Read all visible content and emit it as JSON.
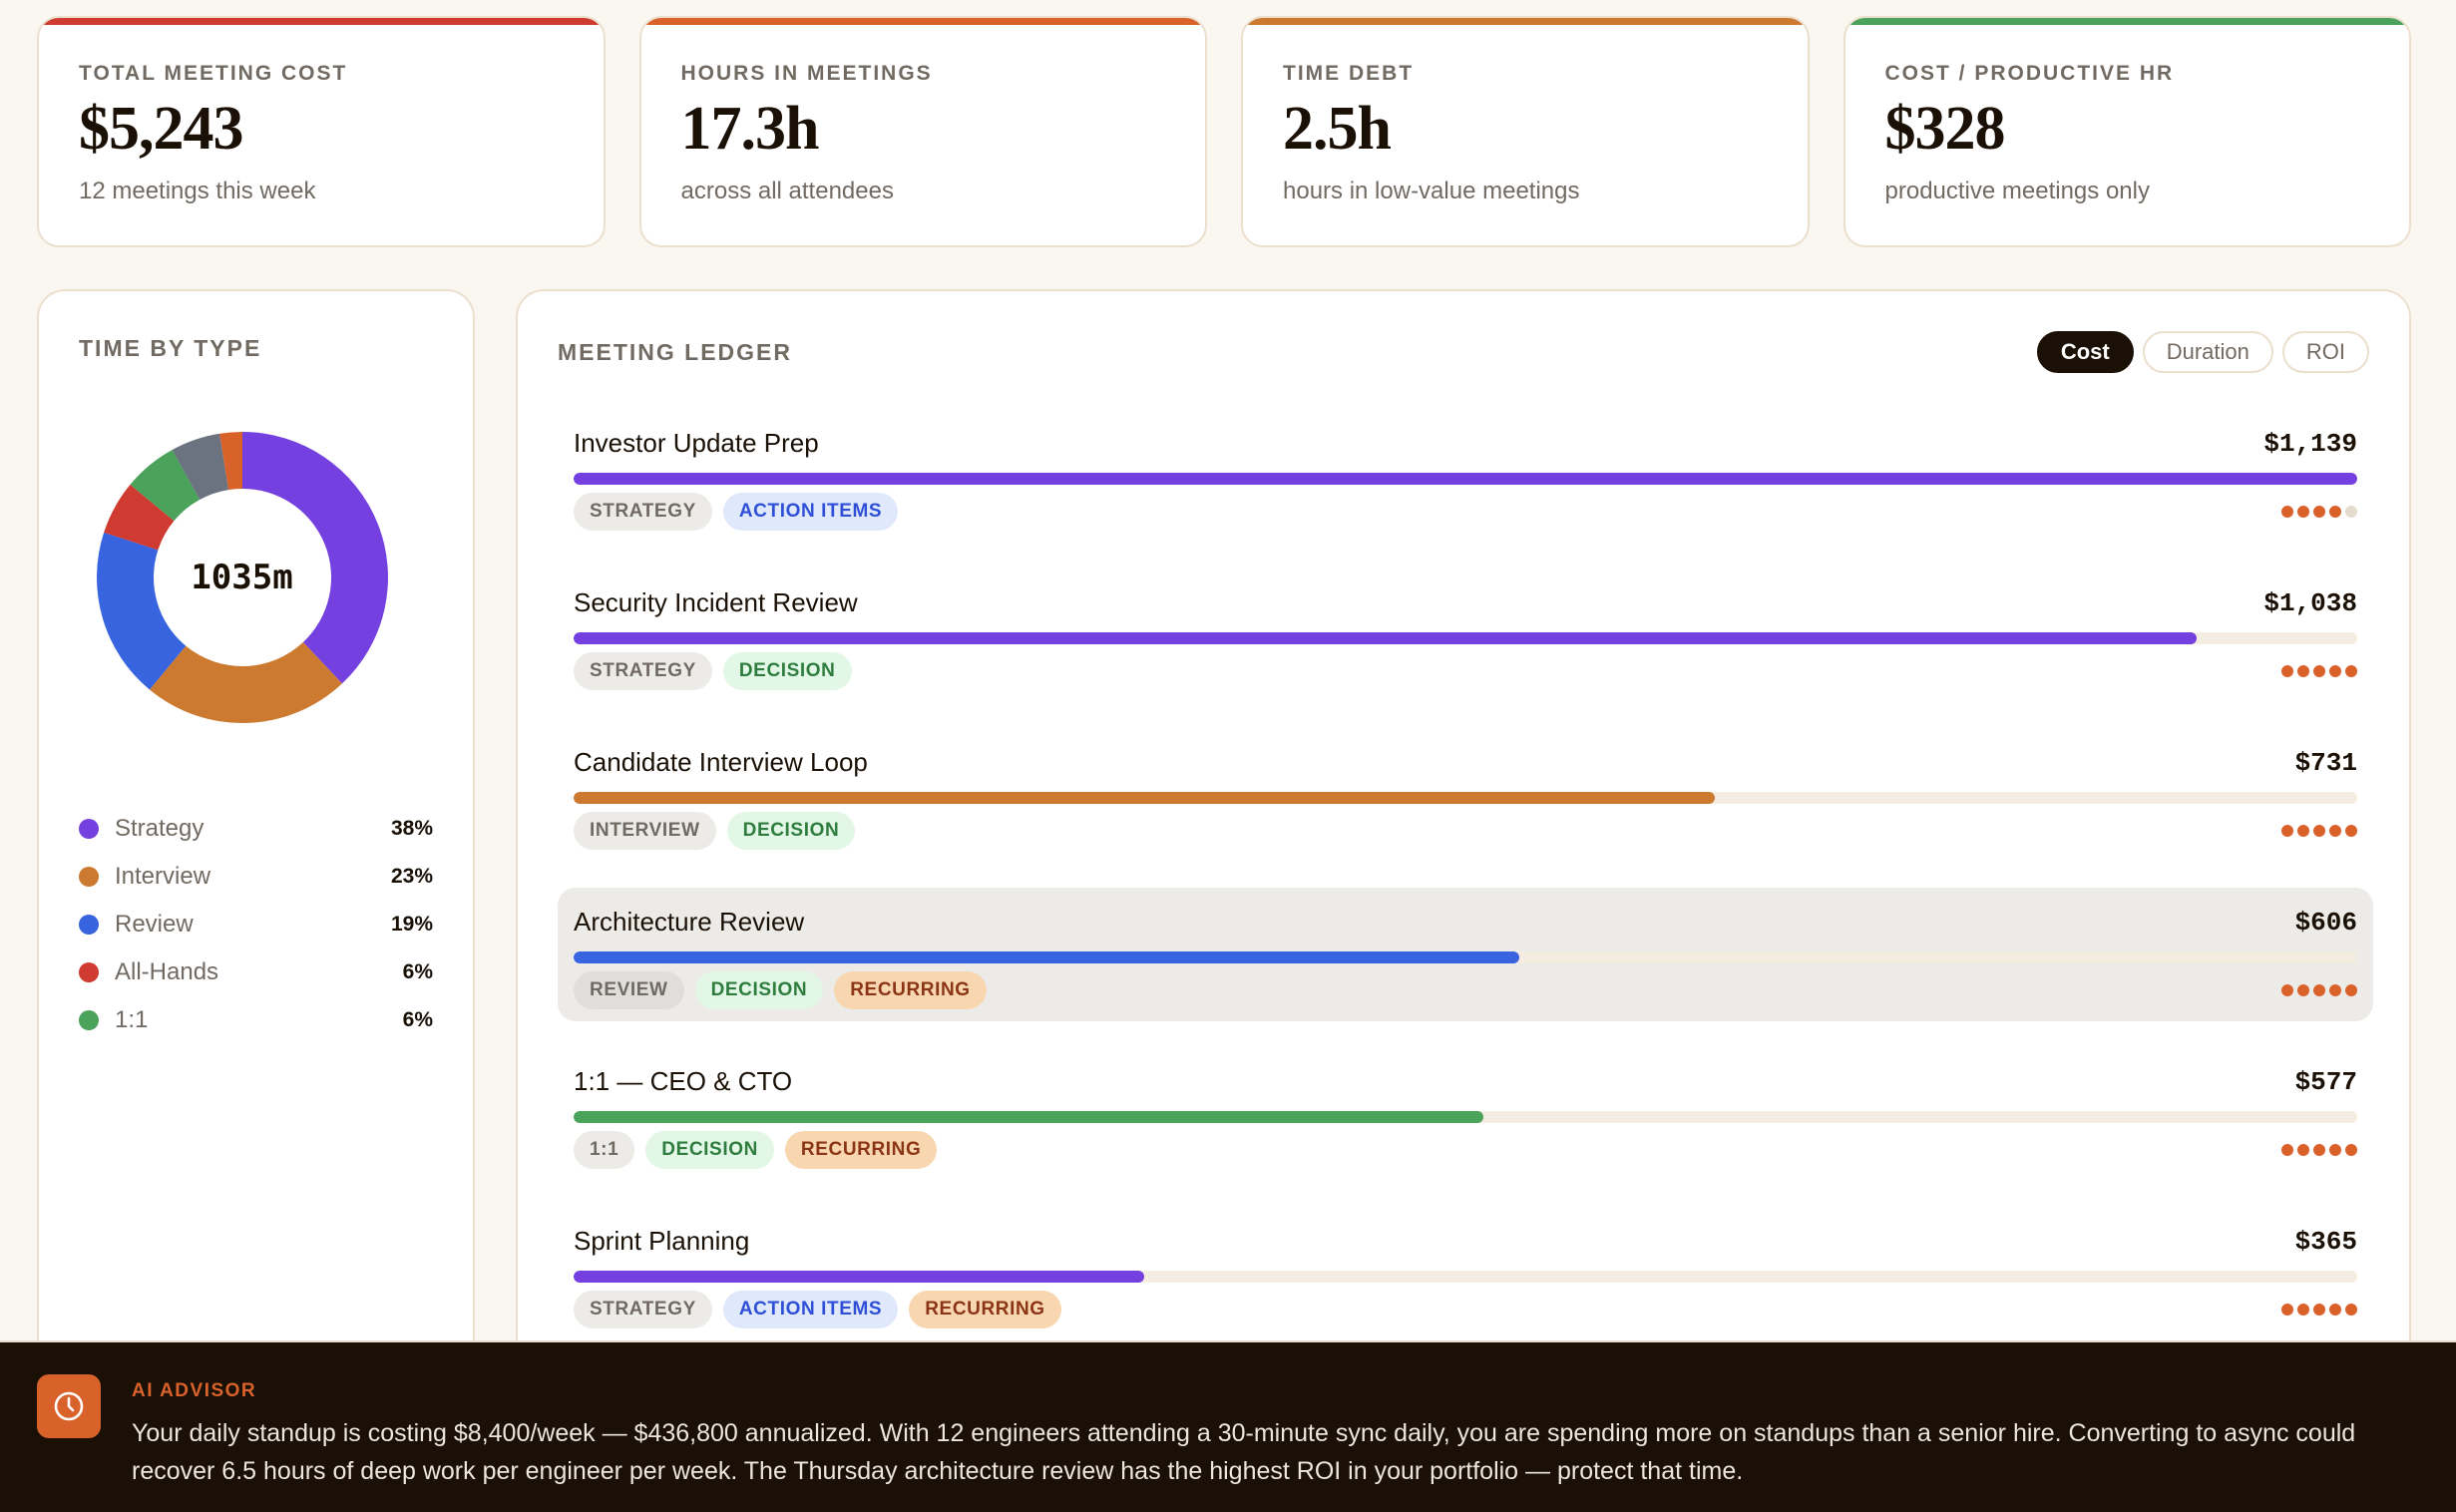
{
  "kpis": [
    {
      "label": "Total Meeting Cost",
      "value": "$5,243",
      "sub": "12 meetings this week",
      "accent": "#cf3b30"
    },
    {
      "label": "Hours in Meetings",
      "value": "17.3h",
      "sub": "across all attendees",
      "accent": "#d9622b"
    },
    {
      "label": "Time Debt",
      "value": "2.5h",
      "sub": "hours in low-value meetings",
      "accent": "#cc7a30"
    },
    {
      "label": "Cost / Productive HR",
      "value": "$328",
      "sub": "productive meetings only",
      "accent": "#4ba25a"
    }
  ],
  "time_by_type": {
    "title": "Time by Type",
    "center_label": "1035m",
    "legend": [
      {
        "label": "Strategy",
        "pct": "38%",
        "color": "#7540e0"
      },
      {
        "label": "Interview",
        "pct": "23%",
        "color": "#cc7a30"
      },
      {
        "label": "Review",
        "pct": "19%",
        "color": "#3864e0"
      },
      {
        "label": "All-Hands",
        "pct": "6%",
        "color": "#cf3b30"
      },
      {
        "label": "1:1",
        "pct": "6%",
        "color": "#4ba25a"
      }
    ]
  },
  "chart_data": {
    "type": "pie",
    "title": "Time by Type",
    "center_label": "1035m",
    "categories": [
      "Strategy",
      "Interview",
      "Review",
      "All-Hands",
      "1:1",
      "Other (gray)",
      "Other (orange)"
    ],
    "values": [
      38,
      23,
      19,
      6,
      6,
      5.5,
      2.5
    ],
    "colors": [
      "#7540e0",
      "#cc7a30",
      "#3864e0",
      "#cf3b30",
      "#4ba25a",
      "#6b7280",
      "#d9622b"
    ],
    "legend_position": "bottom",
    "donut": true
  },
  "ledger": {
    "title": "Meeting Ledger",
    "sort_options": [
      {
        "label": "Cost",
        "active": true
      },
      {
        "label": "Duration",
        "active": false
      },
      {
        "label": "ROI",
        "active": false
      }
    ],
    "rows": [
      {
        "title": "Investor Update Prep",
        "cost": "$1,139",
        "bar_pct": 100,
        "bar_color": "#7540e0",
        "tags": [
          {
            "label": "Strategy",
            "kind": "type"
          },
          {
            "label": "Action Items",
            "kind": "action"
          }
        ],
        "roi_dots": 4,
        "highlight": false
      },
      {
        "title": "Security Incident Review",
        "cost": "$1,038",
        "bar_pct": 91,
        "bar_color": "#7540e0",
        "tags": [
          {
            "label": "Strategy",
            "kind": "type"
          },
          {
            "label": "Decision",
            "kind": "decision"
          }
        ],
        "roi_dots": 5,
        "highlight": false
      },
      {
        "title": "Candidate Interview Loop",
        "cost": "$731",
        "bar_pct": 64,
        "bar_color": "#cc7a30",
        "tags": [
          {
            "label": "Interview",
            "kind": "type"
          },
          {
            "label": "Decision",
            "kind": "decision"
          }
        ],
        "roi_dots": 5,
        "highlight": false
      },
      {
        "title": "Architecture Review",
        "cost": "$606",
        "bar_pct": 53,
        "bar_color": "#3864e0",
        "tags": [
          {
            "label": "Review",
            "kind": "type"
          },
          {
            "label": "Decision",
            "kind": "decision"
          },
          {
            "label": "Recurring",
            "kind": "recurring"
          }
        ],
        "roi_dots": 5,
        "highlight": true
      },
      {
        "title": "1:1 — CEO & CTO",
        "cost": "$577",
        "bar_pct": 51,
        "bar_color": "#4ba25a",
        "tags": [
          {
            "label": "1:1",
            "kind": "type"
          },
          {
            "label": "Decision",
            "kind": "decision"
          },
          {
            "label": "Recurring",
            "kind": "recurring"
          }
        ],
        "roi_dots": 5,
        "highlight": false
      },
      {
        "title": "Sprint Planning",
        "cost": "$365",
        "bar_pct": 32,
        "bar_color": "#7540e0",
        "tags": [
          {
            "label": "Strategy",
            "kind": "type"
          },
          {
            "label": "Action Items",
            "kind": "action"
          },
          {
            "label": "Recurring",
            "kind": "recurring"
          }
        ],
        "roi_dots": 5,
        "highlight": false
      }
    ]
  },
  "advisor": {
    "label": "AI Advisor",
    "icon": "clock-icon",
    "text": "Your daily standup is costing $8,400/week — $436,800 annualized. With 12 engineers attending a 30-minute sync daily, you are spending more on standups than a senior hire. Converting to async could\nrecover 6.5 hours of deep work per engineer per week. The Thursday architecture review has the highest ROI in your portfolio — protect that time."
  }
}
